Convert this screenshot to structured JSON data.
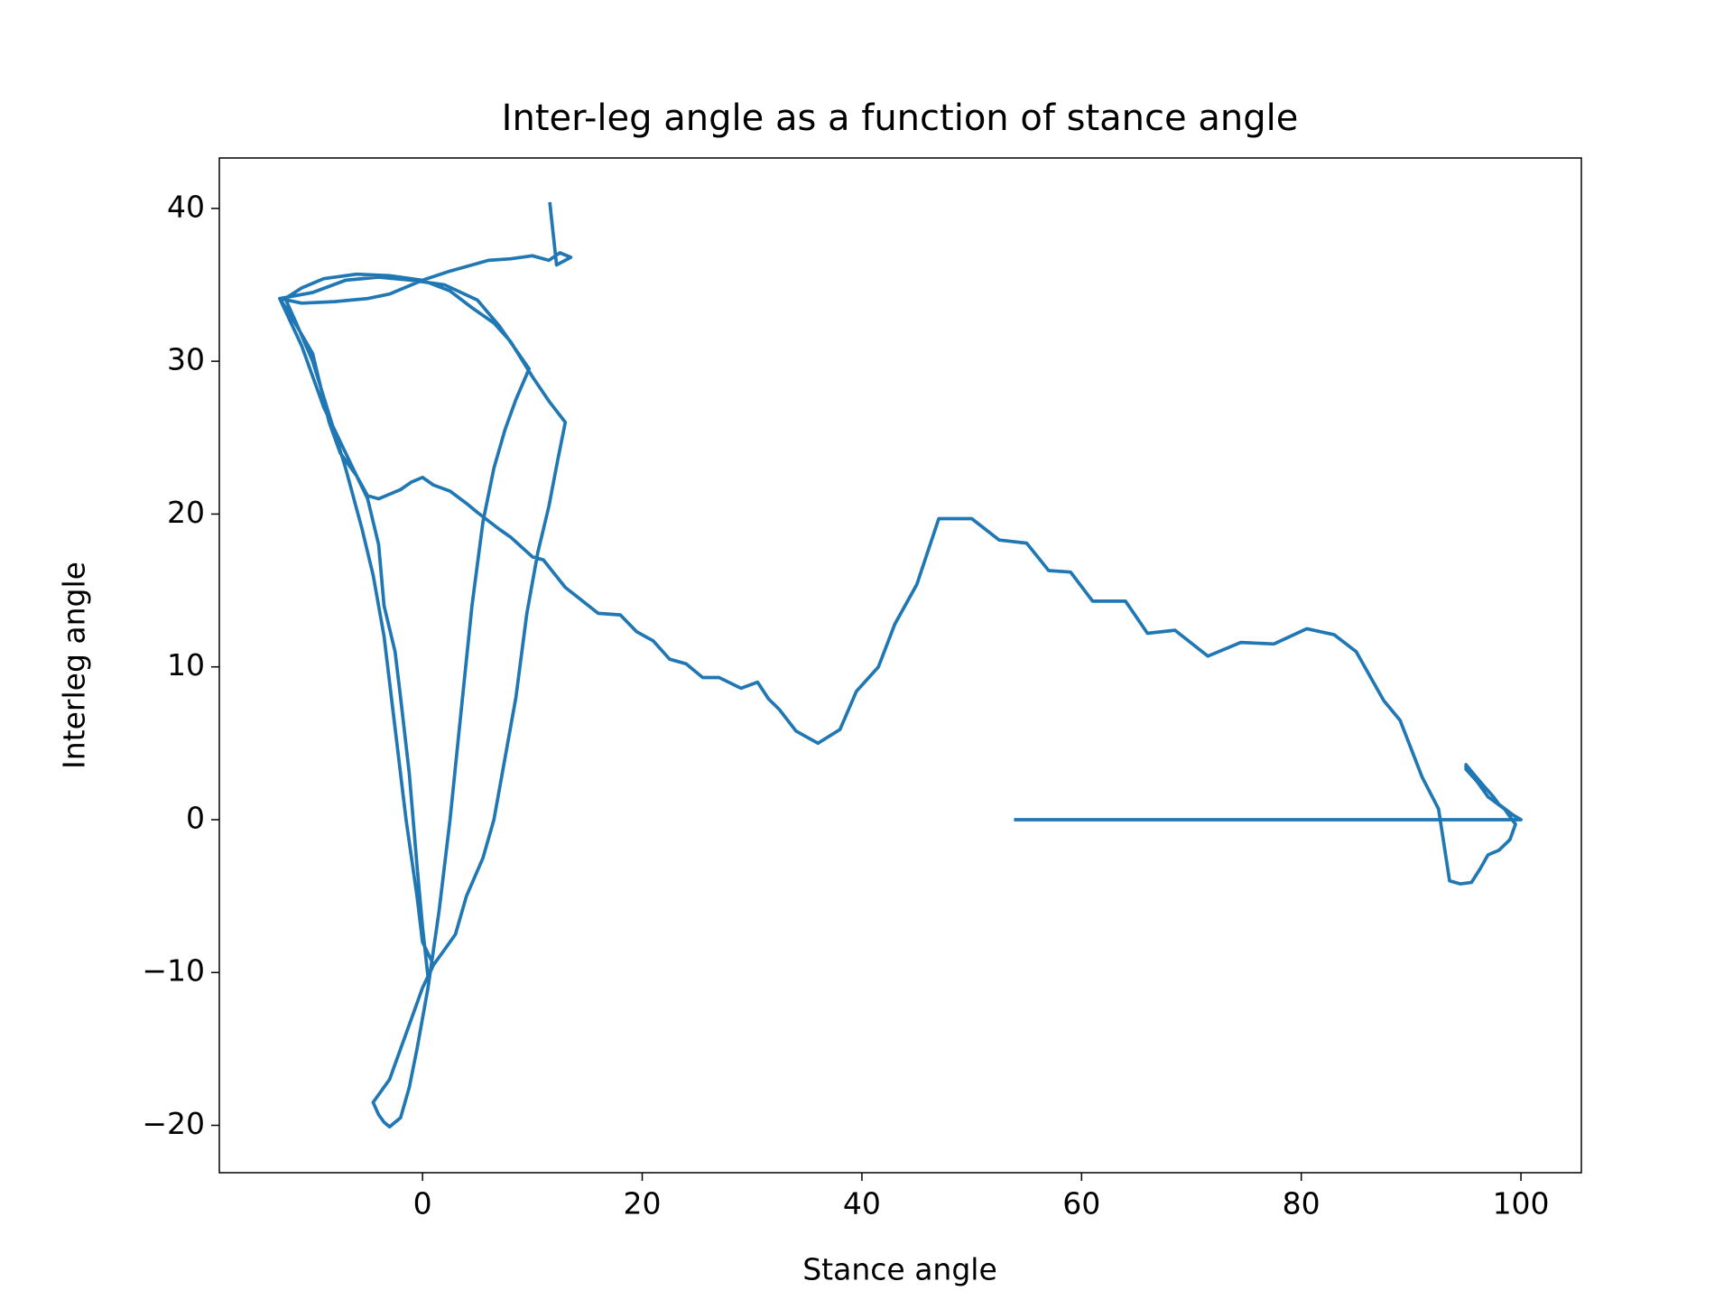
{
  "chart_data": {
    "type": "line",
    "title": "Inter-leg angle as a function of stance angle",
    "xlabel": "Stance angle",
    "ylabel": "Interleg angle",
    "xlim": [
      -18.5,
      105.5
    ],
    "ylim": [
      -23.1,
      43.3
    ],
    "xticks": [
      0,
      20,
      40,
      60,
      80,
      100
    ],
    "yticks": [
      {
        "value": -20,
        "label": "−20"
      },
      {
        "value": -10,
        "label": "−10"
      },
      0,
      10,
      20,
      30,
      40
    ],
    "series": [
      {
        "color": "#1f77b4",
        "x": [
          54,
          100,
          99.3,
          98,
          97.5,
          96.5,
          95.8,
          95,
          95,
          96,
          97,
          98.5,
          99.5,
          99,
          98,
          97,
          96.3,
          95.5,
          94.5,
          93.5,
          92.5,
          91,
          89,
          87.5,
          85,
          83,
          80.5,
          77.5,
          74.5,
          71.5,
          68.5,
          66,
          64,
          61,
          59,
          57,
          55,
          52.5,
          50,
          47,
          45,
          43,
          41.5,
          39.5,
          38,
          36,
          34,
          32.5,
          31.5,
          30.5,
          29,
          27,
          25.5,
          24,
          22.5,
          21,
          19.5,
          18,
          16,
          13,
          11,
          10,
          8,
          7,
          5,
          4,
          2.5,
          1,
          0,
          -1,
          -2,
          -3,
          -4,
          -5,
          -6,
          -7.5,
          -8.5,
          -10,
          -12,
          -13,
          -11,
          -9,
          -7,
          -5,
          -4,
          -3.5,
          -2.5,
          -2,
          -1.2,
          -0.5,
          0,
          0.5,
          1,
          2,
          3,
          4,
          5.5,
          6.5,
          7.5,
          8.5,
          9.5,
          10.5,
          11.5,
          12.3,
          13,
          11.5,
          10,
          8,
          6.5,
          4.5,
          2.5,
          0,
          -3,
          -6,
          -9,
          -11,
          -12.5,
          -11.5,
          -10,
          -8.5,
          -7,
          -5.5,
          -4.5,
          -3.5,
          -2.5,
          -1.5,
          -0.5,
          0,
          1,
          0,
          -1,
          -2,
          -3,
          -4.5,
          -4,
          -3.5,
          -3,
          -2,
          -1.2,
          -0.5,
          0.5,
          1.5,
          2.5,
          3.5,
          4.5,
          5.5,
          6.5,
          7.5,
          8.5,
          9.7,
          7,
          5,
          2,
          -1,
          -4,
          -7,
          -10,
          -13,
          -11,
          -8,
          -5,
          -3,
          0,
          2.5,
          4.5,
          6,
          8,
          10,
          11.5,
          12.5,
          13.5,
          12.2,
          11.6
        ],
        "values": [
          0,
          0,
          0.3,
          1,
          1.5,
          2.3,
          2.9,
          3.6,
          3.3,
          2.5,
          1.5,
          0.7,
          -0.3,
          -1.3,
          -2,
          -2.3,
          -3.2,
          -4.1,
          -4.2,
          -4,
          0.7,
          2.8,
          6.5,
          7.8,
          11,
          12.1,
          12.5,
          11.5,
          11.6,
          10.7,
          12.4,
          12.2,
          14.3,
          14.3,
          16.2,
          16.3,
          18.1,
          18.3,
          19.7,
          19.7,
          15.4,
          12.8,
          10,
          8.4,
          5.9,
          5,
          5.8,
          7.2,
          7.9,
          9,
          8.6,
          9.3,
          9.3,
          10.2,
          10.5,
          11.7,
          12.3,
          13.4,
          13.5,
          15.2,
          17,
          17.2,
          18.5,
          19,
          20.1,
          20.7,
          21.5,
          21.9,
          22.4,
          22.1,
          21.6,
          21.3,
          21,
          21.2,
          22.5,
          24,
          26,
          30.5,
          33,
          34.1,
          31,
          27,
          24,
          21,
          18,
          14,
          11,
          8,
          3,
          -3,
          -7,
          -10.3,
          -9.5,
          -8.5,
          -7.5,
          -5,
          -2.5,
          0,
          4,
          8,
          13.5,
          17.5,
          20.5,
          23.5,
          26,
          27.4,
          29,
          31.3,
          32.5,
          33.5,
          34.6,
          35.3,
          35.6,
          35.7,
          35.4,
          34.8,
          34.1,
          32.5,
          30,
          26.5,
          23,
          19,
          16,
          12,
          6,
          0,
          -5,
          -8,
          -9.5,
          -11,
          -13,
          -15,
          -17,
          -18.5,
          -19.3,
          -19.8,
          -20.1,
          -19.5,
          -17.5,
          -15,
          -11,
          -6,
          0,
          7,
          14,
          19.5,
          23,
          25.5,
          27.5,
          29.5,
          32.3,
          34,
          35,
          35.3,
          35.5,
          35.3,
          34.5,
          34.1,
          33.8,
          33.9,
          34.1,
          34.4,
          35.3,
          35.9,
          36.3,
          36.6,
          36.7,
          36.9,
          36.6,
          37.1,
          36.8,
          36.3,
          40.3
        ]
      }
    ]
  }
}
